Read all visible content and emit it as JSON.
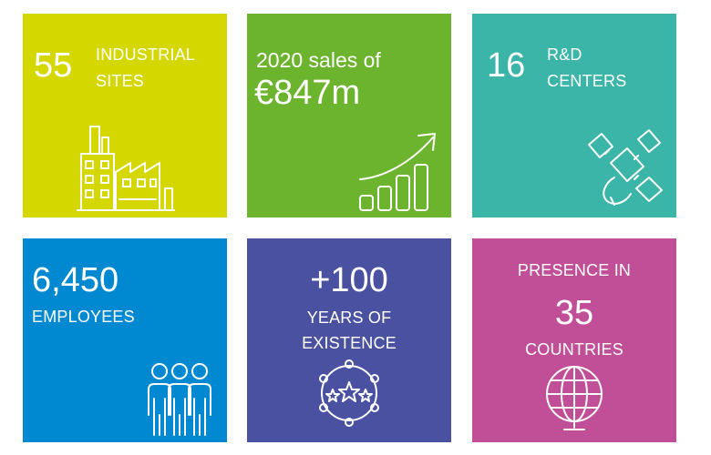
{
  "tiles": [
    {
      "number": "55",
      "caption_line1": "INDUSTRIAL",
      "caption_line2": "SITES",
      "icon": "factory-icon",
      "color": "#d4d800"
    },
    {
      "line1": "2020 sales of",
      "amount": "€847m",
      "icon": "growth-chart-icon",
      "color": "#6cb42d"
    },
    {
      "number": "16",
      "caption_line1": "R&D",
      "caption_line2": "CENTERS",
      "icon": "satellite-icon",
      "color": "#3bb5a7"
    },
    {
      "number": "6,450",
      "caption": "EMPLOYEES",
      "icon": "people-icon",
      "color": "#0089d0"
    },
    {
      "number": "+100",
      "caption_line1": "YEARS OF",
      "caption_line2": "EXISTENCE",
      "icon": "stars-badge-icon",
      "color": "#4a51a0"
    },
    {
      "caption_top": "PRESENCE IN",
      "number": "35",
      "caption_bottom": "COUNTRIES",
      "icon": "globe-icon",
      "color": "#c04f98"
    }
  ]
}
